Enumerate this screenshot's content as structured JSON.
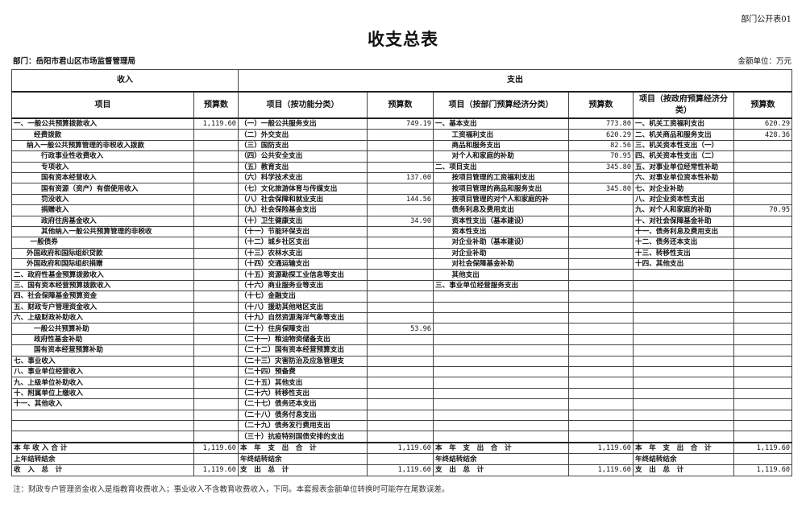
{
  "form_code": "部门公开表01",
  "title": "收支总表",
  "department": "部门：岳阳市君山区市场监督管理局",
  "unit": "金额单位：万元",
  "header": {
    "income": "收入",
    "expense": "支出",
    "columns": [
      "项目",
      "预算数",
      "项目（按功能分类）",
      "预算数",
      "项目（按部门预算经济分类）",
      "预算数",
      "项目（按政府预算经济分类）",
      "预算数"
    ]
  },
  "rows": [
    [
      "一、一般公共预算拨款收入",
      "1,119.60",
      "（一）一般公共服务支出",
      "749.19",
      "一、基本支出",
      "773.80",
      "一、机关工资福利支出",
      "620.29"
    ],
    [
      "经费拨款",
      "",
      "（二）外交支出",
      "",
      "工资福利支出",
      "620.29",
      "二、机关商品和服务支出",
      "428.36"
    ],
    [
      "纳入一般公共预算管理的非税收入拨款",
      "",
      "（三）国防支出",
      "",
      "商品和服务支出",
      "82.56",
      "三、机关资本性支出（一）",
      ""
    ],
    [
      "行政事业性收费收入",
      "",
      "（四）公共安全支出",
      "",
      "对个人和家庭的补助",
      "70.95",
      "四、机关资本性支出（二）",
      ""
    ],
    [
      "专项收入",
      "",
      "（五）教育支出",
      "",
      "二、项目支出",
      "345.80",
      "五、对事业单位经常性补助",
      ""
    ],
    [
      "国有资本经营收入",
      "",
      "（六）科学技术支出",
      "137.00",
      "按项目管理的工资福利支出",
      "",
      "六、对事业单位资本性补助",
      ""
    ],
    [
      "国有资源（资产）有偿使用收入",
      "",
      "（七）文化旅游体育与传媒支出",
      "",
      "按项目管理的商品和服务支出",
      "345.80",
      "七、对企业补助",
      ""
    ],
    [
      "罚没收入",
      "",
      "（八）社会保障和就业支出",
      "144.56",
      "按项目管理的对个人和家庭的补",
      "",
      "八、对企业资本性支出",
      ""
    ],
    [
      "捐赠收入",
      "",
      "（九）社会保险基金支出",
      "",
      "债务利息及费用支出",
      "",
      "九、对个人和家庭的补助",
      "70.95"
    ],
    [
      "政府住房基金收入",
      "",
      "（十）卫生健康支出",
      "34.90",
      "资本性支出（基本建设）",
      "",
      "十、对社会保障基金补助",
      ""
    ],
    [
      "其他纳入一般公共预算管理的非税收",
      "",
      "（十一）节能环保支出",
      "",
      "资本性支出",
      "",
      "十一、债务利息及费用支出",
      ""
    ],
    [
      "一般债券",
      "",
      "（十二）城乡社区支出",
      "",
      "对企业补助（基本建设）",
      "",
      "十二、债务还本支出",
      ""
    ],
    [
      "外国政府和国际组织贷款",
      "",
      "（十三）农林水支出",
      "",
      "对企业补助",
      "",
      "十三、转移性支出",
      ""
    ],
    [
      "外国政府和国际组织捐赠",
      "",
      "（十四）交通运输支出",
      "",
      "对社会保障基金补助",
      "",
      "十四、其他支出",
      ""
    ],
    [
      "二、政府性基金预算拨款收入",
      "",
      "（十五）资源勘探工业信息等支出",
      "",
      "其他支出",
      "",
      "",
      ""
    ],
    [
      "三、国有资本经营预算拨款收入",
      "",
      "（十六）商业服务业等支出",
      "",
      "三、事业单位经营服务支出",
      "",
      "",
      ""
    ],
    [
      "四、社会保障基金预算资金",
      "",
      "（十七）金融支出",
      "",
      "",
      "",
      "",
      ""
    ],
    [
      "五、财政专户管理资金收入",
      "",
      "（十八）援助其他地区支出",
      "",
      "",
      "",
      "",
      ""
    ],
    [
      "六、上级财政补助收入",
      "",
      "（十九）自然资源海洋气象等支出",
      "",
      "",
      "",
      "",
      ""
    ],
    [
      "一般公共预算补助",
      "",
      "（二十）住房保障支出",
      "53.96",
      "",
      "",
      "",
      ""
    ],
    [
      "政府性基金补助",
      "",
      "（二十一）粮油物资储备支出",
      "",
      "",
      "",
      "",
      ""
    ],
    [
      "国有资本经营预算补助",
      "",
      "（二十二）国有资本经营预算支出",
      "",
      "",
      "",
      "",
      ""
    ],
    [
      "七、事业收入",
      "",
      "（二十三）灾害防治及应急管理支",
      "",
      "",
      "",
      "",
      ""
    ],
    [
      "八、事业单位经营收入",
      "",
      "（二十四）预备费",
      "",
      "",
      "",
      "",
      ""
    ],
    [
      "九、上级单位补助收入",
      "",
      "（二十五）其他支出",
      "",
      "",
      "",
      "",
      ""
    ],
    [
      "十、附属单位上缴收入",
      "",
      "（二十六）转移性支出",
      "",
      "",
      "",
      "",
      ""
    ],
    [
      "十一、其他收入",
      "",
      "（二十七）债务还本支出",
      "",
      "",
      "",
      "",
      ""
    ],
    [
      "",
      "",
      "（二十八）债务付息支出",
      "",
      "",
      "",
      "",
      ""
    ],
    [
      "",
      "",
      "（二十九）债务发行费用支出",
      "",
      "",
      "",
      "",
      ""
    ],
    [
      "",
      "",
      "（三十）抗疫特别国债安排的支出",
      "",
      "",
      "",
      "",
      ""
    ]
  ],
  "totals": [
    [
      "本 年 收 入 合 计",
      "1,119.60",
      "本　年　支　出　合　计",
      "1,119.60",
      "本　年　支　出　合　计",
      "1,119.60",
      "本　年　支　出　合　计",
      "1,119.60"
    ],
    [
      "上年结转结余",
      "",
      "年终结转结余",
      "",
      "年终结转结余",
      "",
      "年终结转结余",
      ""
    ],
    [
      "收　入　总　计",
      "1,119.60",
      "支　出　总　计",
      "1,119.60",
      "支　出　总　计",
      "1,119.60",
      "支　出　总　计",
      "1,119.60"
    ]
  ],
  "note": "注：财政专户管理资金收入是指教育收费收入；事业收入不含教育收费收入，下同。本套报表金额单位转换时可能存在尾数误差。"
}
